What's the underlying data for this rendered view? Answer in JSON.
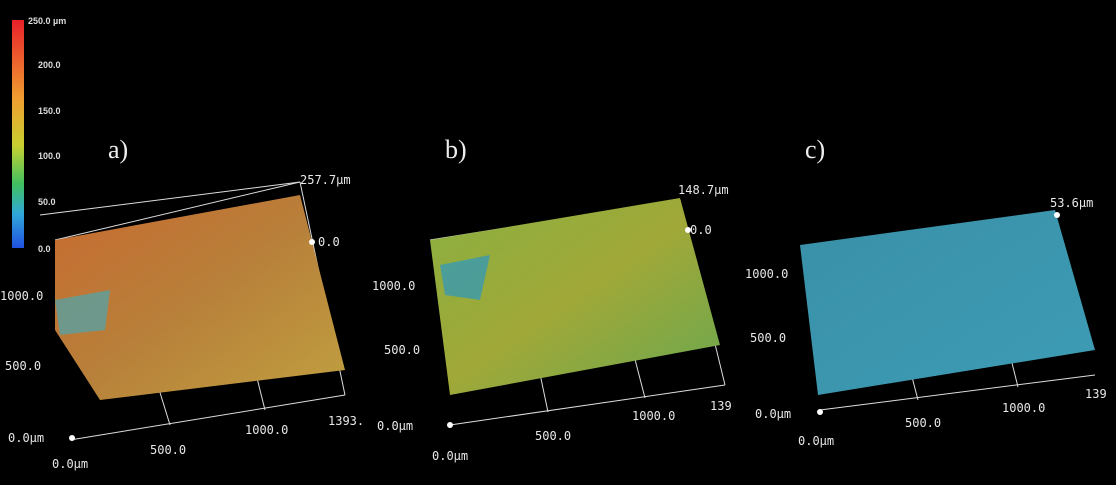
{
  "colorbar": {
    "labels": [
      "250.0 µm",
      "200.0",
      "150.0",
      "100.0",
      "50.0",
      "0.0"
    ]
  },
  "panels": [
    {
      "label": "a)",
      "texts": [
        "257.7µm",
        "0.0",
        "1000.0",
        "500.0",
        "0.0µm",
        "0.0µm",
        "500.0",
        "1000.0",
        "1393."
      ]
    },
    {
      "label": "b)",
      "texts": [
        "148.7µm",
        "0.0",
        "1000.0",
        "500.0",
        "0.0µm",
        "0.0µm",
        "500.0",
        "1000.0",
        "139"
      ]
    },
    {
      "label": "c)",
      "texts": [
        "53.6µm",
        "1000.0",
        "500.0",
        "0.0µm",
        "0.0µm",
        "500.0",
        "1000.0",
        "139"
      ]
    }
  ]
}
